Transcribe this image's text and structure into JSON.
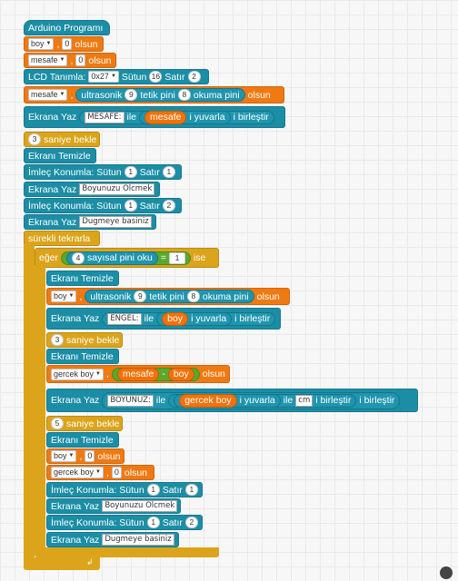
{
  "blocks": {
    "program": "Arduino Programı",
    "var1": {
      "name": "boy",
      "value": "0",
      "suffix": "olsun"
    },
    "var2": {
      "name": "mesafe",
      "value": "0",
      "suffix": "olsun"
    },
    "lcd": {
      "label": "LCD Tanımla:",
      "addr": "0x27",
      "sutun_label": "Sütun",
      "sutun": "16",
      "satir_label": "Satır",
      "satir": "2"
    },
    "ultra1": {
      "var": "mesafe",
      "label": "ultrasonik",
      "trig": "9",
      "tetik": "tetik pini",
      "echo": "8",
      "okuma": "okuma pini",
      "suffix": "olsun"
    },
    "yaz1": {
      "label": "Ekrana Yaz",
      "text": "MESAFE:",
      "ile": "ile",
      "var": "mesafe",
      "yuvarla": "i yuvarla",
      "birlestir": "i birleştir"
    },
    "bekle1": {
      "value": "3",
      "label": "saniye bekle"
    },
    "temizle1": "Ekranı Temizle",
    "imlec1": {
      "label": "İmleç Konumla: Sütun",
      "sutun": "1",
      "satir_label": "Satır",
      "satir": "1"
    },
    "yaz2": {
      "label": "Ekrana Yaz",
      "text": "Boyunuzu Olcmek"
    },
    "imlec2": {
      "label": "İmleç Konumla: Sütun",
      "sutun": "1",
      "satir_label": "Satır",
      "satir": "2"
    },
    "yaz3": {
      "label": "Ekrana Yaz",
      "text": "Dugmeye basiniz"
    },
    "loop": "sürekli tekrarla",
    "if": {
      "label": "eğer",
      "pin": "4",
      "oku": "sayısal pini oku",
      "op": "=",
      "value": "1",
      "ise": "ise"
    },
    "temizle2": "Ekranı Temizle",
    "ultra2": {
      "var": "boy",
      "label": "ultrasonik",
      "trig": "9",
      "tetik": "tetik pini",
      "echo": "8",
      "okuma": "okuma pini",
      "suffix": "olsun"
    },
    "yaz4": {
      "label": "Ekrana Yaz",
      "text": "ENGEL:",
      "ile": "ile",
      "var": "boy",
      "yuvarla": "i yuvarla",
      "birlestir": "i birleştir"
    },
    "bekle2": {
      "value": "3",
      "label": "saniye bekle"
    },
    "temizle3": "Ekranı Temizle",
    "calc": {
      "var": "gercek boy",
      "left": "mesafe",
      "op": "-",
      "right": "boy",
      "suffix": "olsun"
    },
    "yaz5": {
      "label": "Ekrana Yaz",
      "text": "BOYUNUZ:",
      "ile": "ile",
      "var": "gercek boy",
      "yuvarla": "i yuvarla",
      "ile2": "ile",
      "unit": "cm",
      "birlestir": "i birleştir",
      "birlestir2": "i birleştir"
    },
    "bekle3": {
      "value": "5",
      "label": "saniye bekle"
    },
    "temizle4": "Ekranı Temizle",
    "var3": {
      "name": "boy",
      "value": "0",
      "suffix": "olsun"
    },
    "var4": {
      "name": "gercek boy",
      "value": "0",
      "suffix": "olsun"
    },
    "imlec3": {
      "label": "İmleç Konumla: Sütun",
      "sutun": "1",
      "satir_label": "Satır",
      "satir": "1"
    },
    "yaz6": {
      "label": "Ekrana Yaz",
      "text": "Boyunuzu Olcmek"
    },
    "imlec4": {
      "label": "İmleç Konumla: Sütun",
      "sutun": "1",
      "satir_label": "Satır",
      "satir": "2"
    },
    "yaz7": {
      "label": "Ekrana Yaz",
      "text": "Dugmeye basiniz"
    }
  },
  "colors": {
    "teal": "#1b8ea6",
    "orange": "#ef7a12",
    "gold": "#dba41a",
    "green": "#5ba82c"
  }
}
